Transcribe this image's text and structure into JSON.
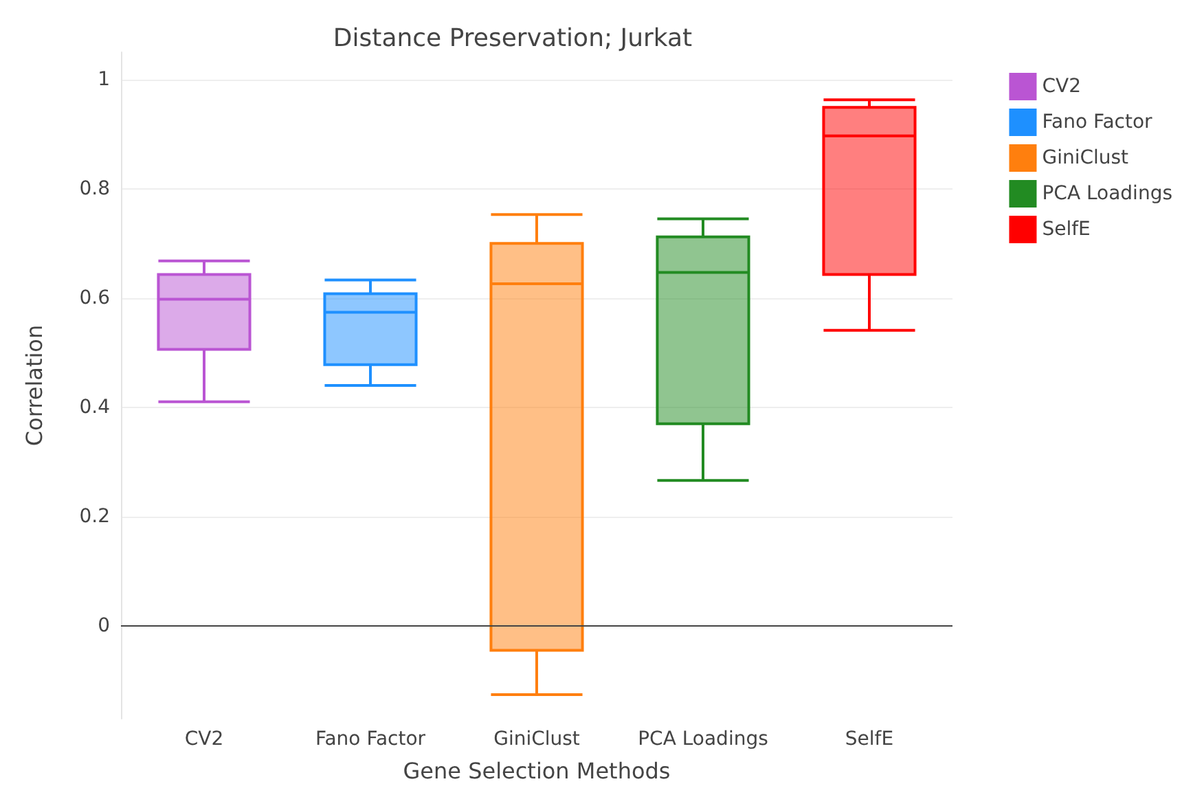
{
  "chart_data": {
    "type": "box",
    "title": "Distance Preservation; Jurkat",
    "xlabel": "Gene Selection Methods",
    "ylabel": "Correlation",
    "categories": [
      "CV2",
      "Fano Factor",
      "GiniClust",
      "PCA Loadings",
      "SelfE"
    ],
    "series": [
      {
        "name": "CV2",
        "color": "#ba55d3",
        "boxes": [
          {
            "low": 0.41,
            "q1": 0.506,
            "median": 0.598,
            "q3": 0.643,
            "high": 0.668
          },
          null,
          null,
          null,
          null
        ]
      },
      {
        "name": "Fano Factor",
        "color": "#1e90ff",
        "boxes": [
          null,
          {
            "low": 0.44,
            "q1": 0.478,
            "median": 0.574,
            "q3": 0.608,
            "high": 0.633
          },
          null,
          null,
          null
        ]
      },
      {
        "name": "GiniClust",
        "color": "#ff7f0e",
        "boxes": [
          null,
          null,
          {
            "low": -0.126,
            "q1": -0.045,
            "median": 0.626,
            "q3": 0.7,
            "high": 0.753
          },
          null,
          null
        ]
      },
      {
        "name": "PCA Loadings",
        "color": "#228b22",
        "boxes": [
          null,
          null,
          null,
          {
            "low": 0.266,
            "q1": 0.37,
            "median": 0.647,
            "q3": 0.712,
            "high": 0.745
          },
          null
        ]
      },
      {
        "name": "SelfE",
        "color": "#ff0000",
        "boxes": [
          null,
          null,
          null,
          null,
          {
            "low": 0.541,
            "q1": 0.643,
            "median": 0.897,
            "q3": 0.949,
            "high": 0.963
          }
        ]
      }
    ],
    "ylim": [
      -0.17,
      1.05
    ],
    "yticks": [
      0,
      0.2,
      0.4,
      0.6,
      0.8,
      1
    ],
    "grid": "y",
    "legend": "top right"
  }
}
